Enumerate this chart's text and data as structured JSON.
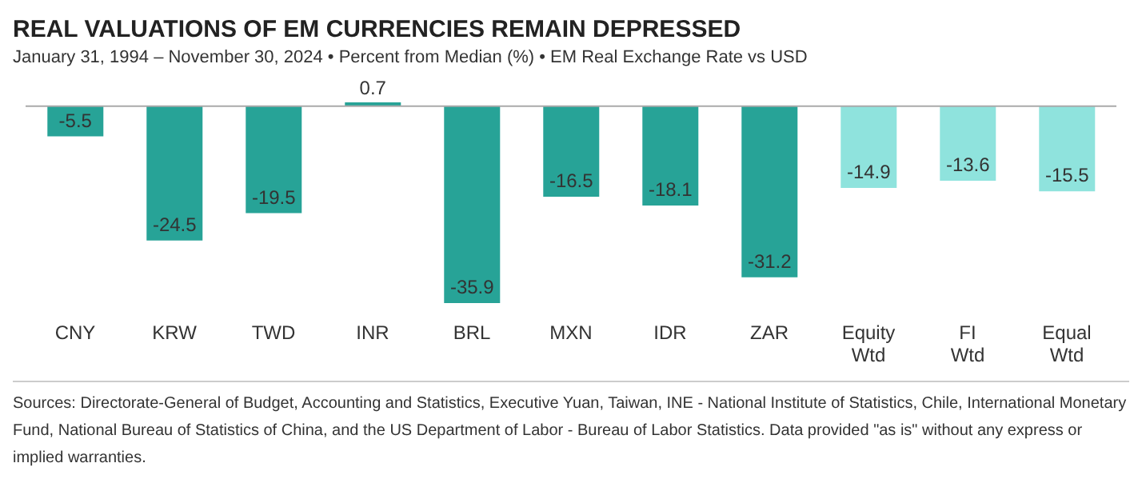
{
  "chart_data": {
    "type": "bar",
    "title": "REAL VALUATIONS OF EM CURRENCIES REMAIN DEPRESSED",
    "subtitle": "January 31, 1994 – November 30, 2024 • Percent from Median (%) • EM Real Exchange Rate vs USD",
    "categories": [
      "CNY",
      "KRW",
      "TWD",
      "INR",
      "BRL",
      "MXN",
      "IDR",
      "ZAR",
      "Equity Wtd",
      "FI Wtd",
      "Equal Wtd"
    ],
    "values": [
      -5.5,
      -24.5,
      -19.5,
      0.7,
      -35.9,
      -16.5,
      -18.1,
      -31.2,
      -14.9,
      -13.6,
      -15.5
    ],
    "colors": [
      "#27a397",
      "#27a397",
      "#27a397",
      "#27a397",
      "#27a397",
      "#27a397",
      "#27a397",
      "#27a397",
      "#8fe3dd",
      "#8fe3dd",
      "#8fe3dd"
    ],
    "data_labels": true,
    "annotations": [
      "Sources: Directorate-General of Budget, Accounting and Statistics, Executive Yuan, Taiwan, INE - National Institute of Statistics, Chile, International Monetary Fund, National Bureau of Statistics of China, and the US Department of Labor - Bureau of Labor Statistics. Data provided \"as is\" without any express or implied warranties."
    ]
  }
}
